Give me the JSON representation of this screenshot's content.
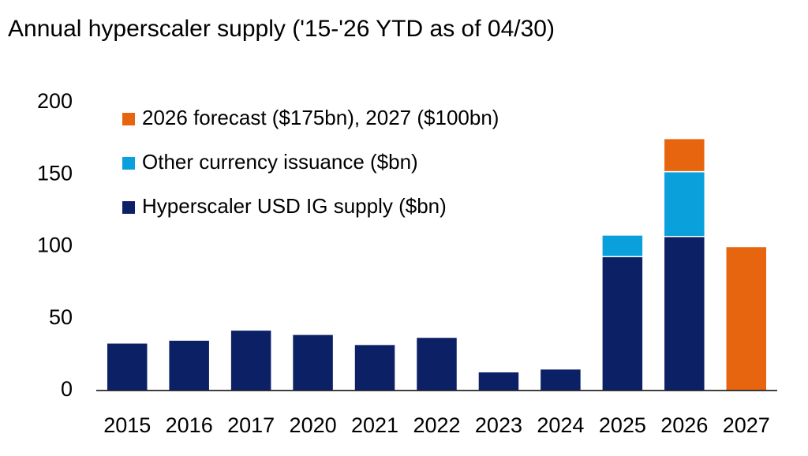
{
  "chart_data": {
    "type": "stacked_bar",
    "title": "Annual hyperscaler supply ('15-'26 YTD as of 04/30)",
    "categories": [
      "2015",
      "2016",
      "2017",
      "2020",
      "2021",
      "2022",
      "2023",
      "2024",
      "2025",
      "2026",
      "2027"
    ],
    "series": [
      {
        "name": "Hyperscaler USD IG supply ($bn)",
        "color": "#0c2066",
        "values": [
          33,
          35,
          42,
          39,
          32,
          37,
          13,
          15,
          93,
          107,
          null
        ]
      },
      {
        "name": "Other currency issuance ($bn)",
        "color": "#0aa0dc",
        "values": [
          null,
          null,
          null,
          null,
          null,
          null,
          null,
          null,
          15,
          45,
          null
        ]
      },
      {
        "name": "2026 forecast ($175bn), 2027 ($100bn)",
        "color": "#e8650f",
        "values": [
          null,
          null,
          null,
          null,
          null,
          null,
          null,
          null,
          null,
          23,
          100
        ]
      }
    ],
    "ylim": [
      0,
      200
    ],
    "yticks": [
      0,
      50,
      100,
      150,
      200
    ],
    "grid": false,
    "legend": "top-left"
  }
}
